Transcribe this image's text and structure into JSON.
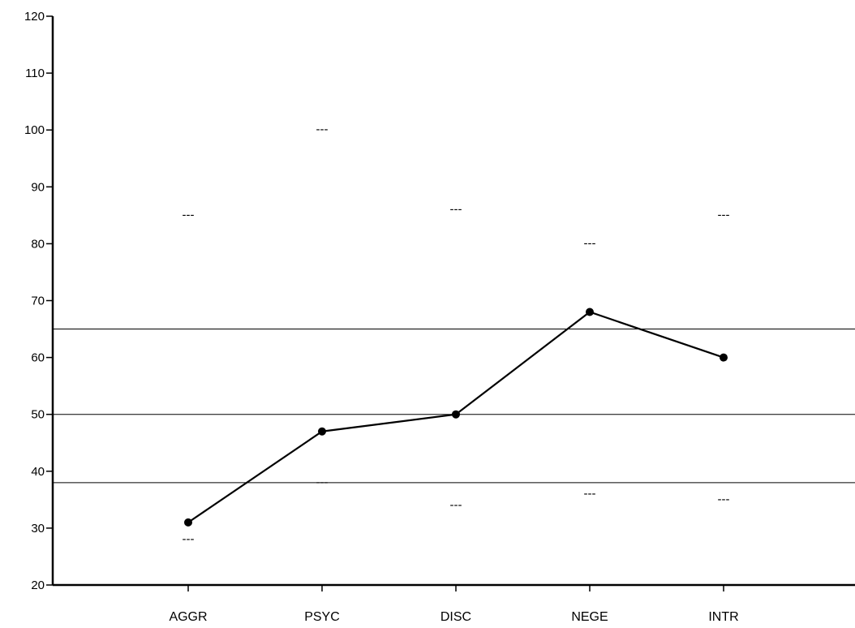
{
  "chart_data": {
    "type": "line",
    "title": "",
    "xlabel": "",
    "ylabel": "",
    "ylim": [
      20,
      120
    ],
    "yticks": [
      20,
      30,
      40,
      50,
      60,
      70,
      80,
      90,
      100,
      110,
      120
    ],
    "categories": [
      "AGGR",
      "PSYC",
      "DISC",
      "NEGE",
      "INTR"
    ],
    "series": [
      {
        "values": [
          31,
          47,
          50,
          68,
          60
        ],
        "color": "#000000"
      }
    ],
    "range_upper": [
      85,
      100,
      86,
      80,
      85
    ],
    "range_lower": [
      28,
      38,
      34,
      36,
      35
    ],
    "range_marker": "---",
    "reference_lines": [
      65,
      50,
      38
    ],
    "grid": false,
    "legend": "none"
  }
}
